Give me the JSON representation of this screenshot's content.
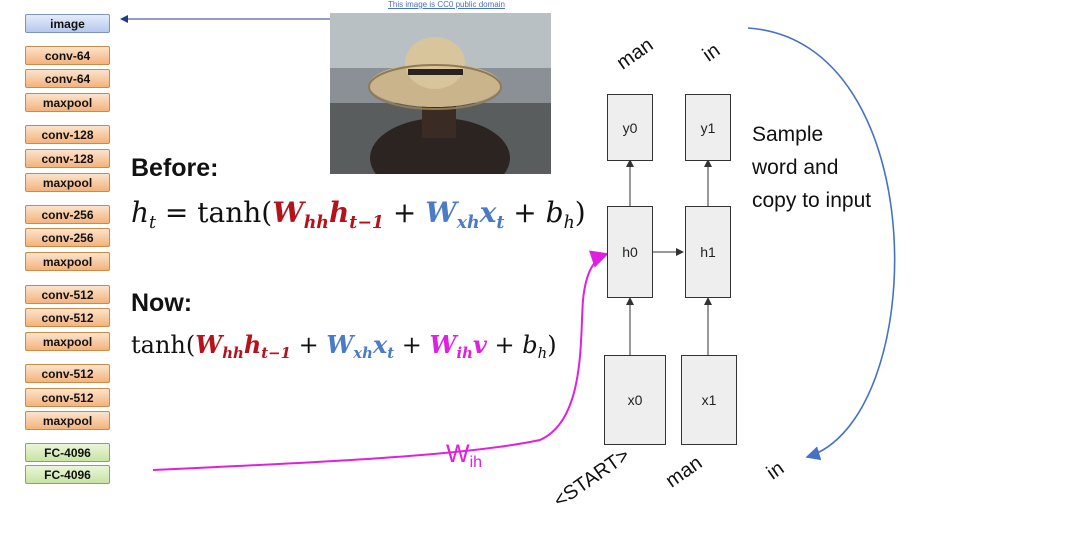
{
  "credit": "This image is CC0 public domain",
  "vgg_layers": [
    "image",
    "conv-64",
    "conv-64",
    "maxpool",
    "conv-128",
    "conv-128",
    "maxpool",
    "conv-256",
    "conv-256",
    "maxpool",
    "conv-512",
    "conv-512",
    "maxpool",
    "conv-512",
    "conv-512",
    "maxpool",
    "FC-4096",
    "FC-4096"
  ],
  "before_label": "Before:",
  "now_label": "Now:",
  "wih_label": {
    "main": "W",
    "sub": "ih"
  },
  "rnn": {
    "outputs": [
      "y0",
      "y1"
    ],
    "hidden": [
      "h0",
      "h1"
    ],
    "inputs": [
      "x0",
      "x1"
    ],
    "output_words": [
      "man",
      "in"
    ],
    "input_words": [
      "<START>",
      "man",
      "in"
    ]
  },
  "note": "Sample word and copy to input",
  "colors": {
    "red": "#b5121b",
    "blue": "#4a7ac8",
    "magenta": "#e020e0",
    "arrow_blue": "#4472c4"
  }
}
